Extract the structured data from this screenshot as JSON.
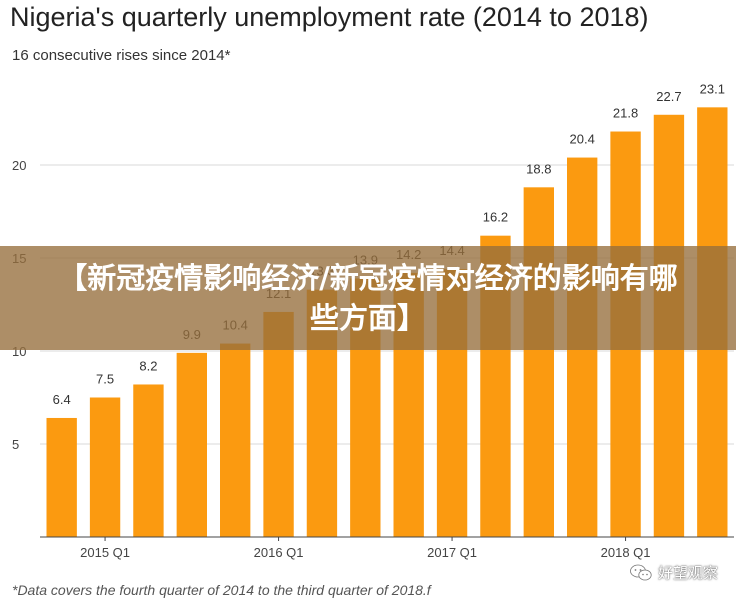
{
  "chart_data": {
    "type": "bar",
    "title": "Nigeria's quarterly unemployment rate (2014 to 2018)",
    "subtitle": "16 consecutive rises since 2014*",
    "values": [
      6.4,
      7.5,
      8.2,
      9.9,
      10.4,
      12.1,
      13.3,
      13.9,
      14.2,
      14.4,
      16.2,
      18.8,
      20.4,
      21.8,
      22.7,
      23.1
    ],
    "data_labels": [
      "6.4",
      "7.5",
      "8.2",
      "9.9",
      "10.4",
      "12.1",
      "13.3",
      "13.9",
      "14.2",
      "14.4",
      "16.2",
      "18.8",
      "20.4",
      "21.8",
      "22.7",
      "23.1"
    ],
    "x_tick_labels": [
      "2015 Q1",
      "2016 Q1",
      "2017 Q1",
      "2018 Q1"
    ],
    "x_tick_positions": [
      1,
      5,
      9,
      13
    ],
    "y_ticks": [
      5,
      10,
      15,
      20
    ],
    "ylim": [
      0,
      25
    ],
    "grid": true,
    "legend": "none",
    "footnote": "*Data covers the fourth quarter of 2014 to the third quarter of 2018.f"
  },
  "colors": {
    "bar": "#fb9a10",
    "grid": "#d9d9d9",
    "axis": "#444444"
  },
  "overlay": {
    "text": "【新冠疫情影响经济/新冠疫情对经济的影响有哪些方面】"
  },
  "watermark": {
    "text": "好望观察",
    "icon": "wechat-icon"
  }
}
